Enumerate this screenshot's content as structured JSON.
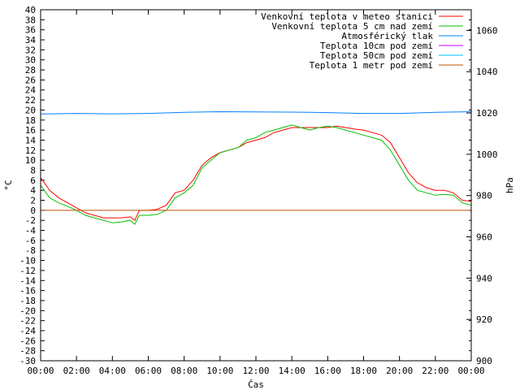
{
  "chart_data": {
    "type": "line",
    "title": "",
    "xlabel": "Čas",
    "ylabel": "°C",
    "y2label": "hPa",
    "grid": false,
    "legend_position": "top-right",
    "x_ticks": [
      "00:00",
      "02:00",
      "04:00",
      "06:00",
      "08:00",
      "10:00",
      "12:00",
      "14:00",
      "16:00",
      "18:00",
      "20:00",
      "22:00",
      "00:00"
    ],
    "xlim_hours": [
      0,
      24
    ],
    "ylim": [
      -30,
      40
    ],
    "y_tick_step": 2,
    "y2lim": [
      900,
      1070
    ],
    "y2_ticks": [
      900,
      920,
      940,
      960,
      980,
      1000,
      1020,
      1040,
      1060
    ],
    "series": [
      {
        "name": "Venkovní teplota v meteo stanici",
        "axis": "left",
        "color": "#ff0000",
        "x": [
          0,
          0.5,
          1,
          1.5,
          2,
          2.5,
          3,
          3.5,
          4,
          4.5,
          5,
          5.25,
          5.5,
          6,
          6.5,
          7,
          7.5,
          8,
          8.5,
          9,
          9.5,
          10,
          10.5,
          11,
          11.5,
          12,
          12.5,
          13,
          13.5,
          14,
          14.5,
          15,
          15.5,
          16,
          16.5,
          17,
          17.5,
          18,
          18.5,
          19,
          19.5,
          20,
          20.5,
          21,
          21.5,
          22,
          22.5,
          23,
          23.5,
          24
        ],
        "values": [
          6.5,
          4.0,
          2.5,
          1.5,
          0.5,
          -0.5,
          -1.0,
          -1.5,
          -1.5,
          -1.5,
          -1.3,
          -2.0,
          0.0,
          0.0,
          0.2,
          1.0,
          3.5,
          4.0,
          6.0,
          9.0,
          10.5,
          11.5,
          12.0,
          12.5,
          13.5,
          14.0,
          14.5,
          15.5,
          16.0,
          16.5,
          16.5,
          16.5,
          16.5,
          16.5,
          16.8,
          16.5,
          16.2,
          16.0,
          15.5,
          15.0,
          13.5,
          10.5,
          7.5,
          5.5,
          4.5,
          4.0,
          4.0,
          3.5,
          2.0,
          1.8
        ]
      },
      {
        "name": "Venkovní teplota 5 cm nad zemí",
        "axis": "left",
        "color": "#00c000",
        "x": [
          0,
          0.5,
          1,
          1.5,
          2,
          2.5,
          3,
          3.5,
          4,
          4.5,
          5,
          5.25,
          5.5,
          6,
          6.5,
          7,
          7.5,
          8,
          8.5,
          9,
          9.5,
          10,
          10.5,
          11,
          11.5,
          12,
          12.5,
          13,
          13.5,
          14,
          14.5,
          15,
          15.5,
          16,
          16.5,
          17,
          17.5,
          18,
          18.5,
          19,
          19.5,
          20,
          20.5,
          21,
          21.5,
          22,
          22.5,
          23,
          23.5,
          24
        ],
        "values": [
          5.0,
          2.5,
          1.5,
          0.8,
          0.0,
          -1.0,
          -1.5,
          -2.0,
          -2.5,
          -2.3,
          -2.0,
          -2.8,
          -1.0,
          -1.0,
          -0.8,
          0.0,
          2.5,
          3.5,
          5.0,
          8.5,
          10.0,
          11.5,
          12.0,
          12.5,
          14.0,
          14.5,
          15.5,
          16.0,
          16.5,
          17.0,
          16.5,
          16.0,
          16.5,
          16.8,
          16.5,
          16.0,
          15.5,
          15.0,
          14.5,
          14.0,
          12.0,
          9.0,
          6.0,
          4.0,
          3.5,
          3.0,
          3.2,
          3.0,
          1.5,
          1.0
        ]
      },
      {
        "name": "Atmosférický tlak",
        "axis": "right",
        "color": "#0080ff",
        "x": [
          0,
          2,
          4,
          6,
          8,
          10,
          12,
          14,
          16,
          18,
          20,
          22,
          24
        ],
        "values": [
          1019.5,
          1019.8,
          1019.6,
          1019.8,
          1020.3,
          1020.6,
          1020.5,
          1020.4,
          1020.2,
          1019.8,
          1019.8,
          1020.3,
          1020.6
        ]
      },
      {
        "name": "Teplota 10cm pod zemí",
        "axis": "left",
        "color": "#c000ff",
        "x": [],
        "values": []
      },
      {
        "name": "Teplota 50cm pod zemí",
        "axis": "left",
        "color": "#00c0ff",
        "x": [],
        "values": []
      },
      {
        "name": "Teplota 1 metr pod zemí",
        "axis": "left",
        "color": "#c05000",
        "x": [
          0,
          24
        ],
        "values": [
          0,
          0
        ]
      }
    ]
  }
}
